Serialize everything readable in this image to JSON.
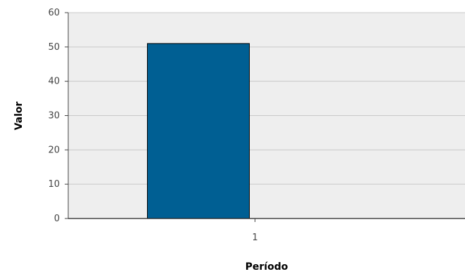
{
  "chart_data": {
    "type": "bar",
    "title": "",
    "xlabel": "Período",
    "ylabel": "Valor",
    "categories": [
      "1"
    ],
    "values": [
      51
    ],
    "ylim": [
      0,
      60
    ],
    "yticks": [
      0,
      10,
      20,
      30,
      40,
      50,
      60
    ],
    "grid": true,
    "legend": "none",
    "colors": {
      "bar": "#005f93",
      "plot_background": "#eeeeee",
      "grid": "#c8c8c8"
    }
  }
}
